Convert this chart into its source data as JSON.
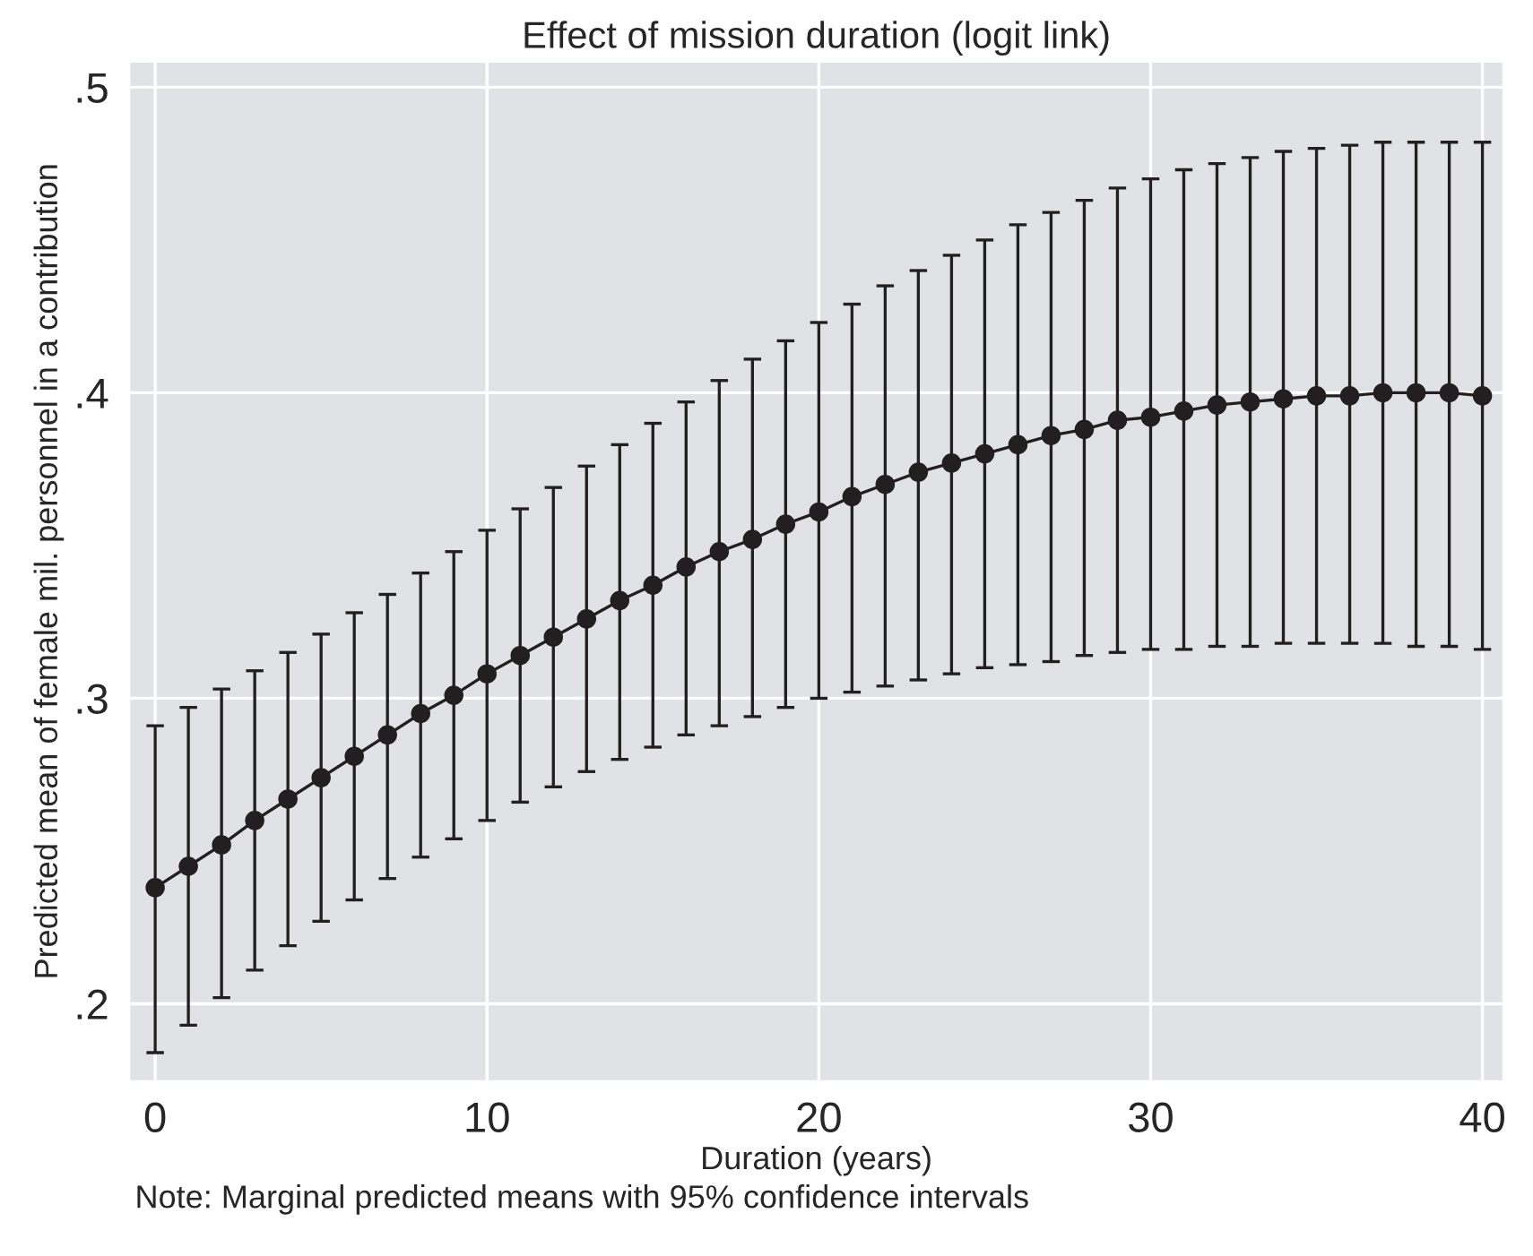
{
  "chart_data": {
    "type": "line",
    "title": "Effect of mission duration (logit link)",
    "xlabel": "Duration (years)",
    "ylabel": "Predicted mean of female mil. personnel in a contribution",
    "annotations": [
      "Note: Marginal predicted means with 95% confidence intervals"
    ],
    "x": [
      0,
      1,
      2,
      3,
      4,
      5,
      6,
      7,
      8,
      9,
      10,
      11,
      12,
      13,
      14,
      15,
      16,
      17,
      18,
      19,
      20,
      21,
      22,
      23,
      24,
      25,
      26,
      27,
      28,
      29,
      30,
      31,
      32,
      33,
      34,
      35,
      36,
      37,
      38,
      39,
      40
    ],
    "series": [
      {
        "color": "#231f20",
        "values": [
          0.238,
          0.245,
          0.252,
          0.26,
          0.267,
          0.274,
          0.281,
          0.288,
          0.295,
          0.301,
          0.308,
          0.314,
          0.32,
          0.326,
          0.332,
          0.337,
          0.343,
          0.348,
          0.352,
          0.357,
          0.361,
          0.366,
          0.37,
          0.374,
          0.377,
          0.38,
          0.383,
          0.386,
          0.388,
          0.391,
          0.392,
          0.394,
          0.396,
          0.397,
          0.398,
          0.399,
          0.399,
          0.4,
          0.4,
          0.4,
          0.399
        ],
        "errors": [
          [
            0.184,
            0.291
          ],
          [
            0.193,
            0.297
          ],
          [
            0.202,
            0.303
          ],
          [
            0.211,
            0.309
          ],
          [
            0.219,
            0.315
          ],
          [
            0.227,
            0.321
          ],
          [
            0.234,
            0.328
          ],
          [
            0.241,
            0.334
          ],
          [
            0.248,
            0.341
          ],
          [
            0.254,
            0.348
          ],
          [
            0.26,
            0.355
          ],
          [
            0.266,
            0.362
          ],
          [
            0.271,
            0.369
          ],
          [
            0.276,
            0.376
          ],
          [
            0.28,
            0.383
          ],
          [
            0.284,
            0.39
          ],
          [
            0.288,
            0.397
          ],
          [
            0.291,
            0.404
          ],
          [
            0.294,
            0.411
          ],
          [
            0.297,
            0.417
          ],
          [
            0.3,
            0.423
          ],
          [
            0.302,
            0.429
          ],
          [
            0.304,
            0.435
          ],
          [
            0.306,
            0.44
          ],
          [
            0.308,
            0.445
          ],
          [
            0.31,
            0.45
          ],
          [
            0.311,
            0.455
          ],
          [
            0.312,
            0.459
          ],
          [
            0.314,
            0.463
          ],
          [
            0.315,
            0.467
          ],
          [
            0.316,
            0.47
          ],
          [
            0.316,
            0.473
          ],
          [
            0.317,
            0.475
          ],
          [
            0.317,
            0.477
          ],
          [
            0.318,
            0.479
          ],
          [
            0.318,
            0.48
          ],
          [
            0.318,
            0.481
          ],
          [
            0.318,
            0.482
          ],
          [
            0.317,
            0.482
          ],
          [
            0.317,
            0.482
          ],
          [
            0.316,
            0.482
          ]
        ]
      }
    ],
    "xlim": [
      -0.75,
      40.6
    ],
    "xticks": [
      0,
      10,
      20,
      30,
      40
    ],
    "ylim": [
      0.175,
      0.508
    ],
    "yticks": [
      {
        "value": 0.2,
        "label": ".2"
      },
      {
        "value": 0.3,
        "label": ".3"
      },
      {
        "value": 0.4,
        "label": ".4"
      },
      {
        "value": 0.5,
        "label": ".5"
      }
    ],
    "grid": true,
    "marker": "circle",
    "line_style": "solid"
  }
}
